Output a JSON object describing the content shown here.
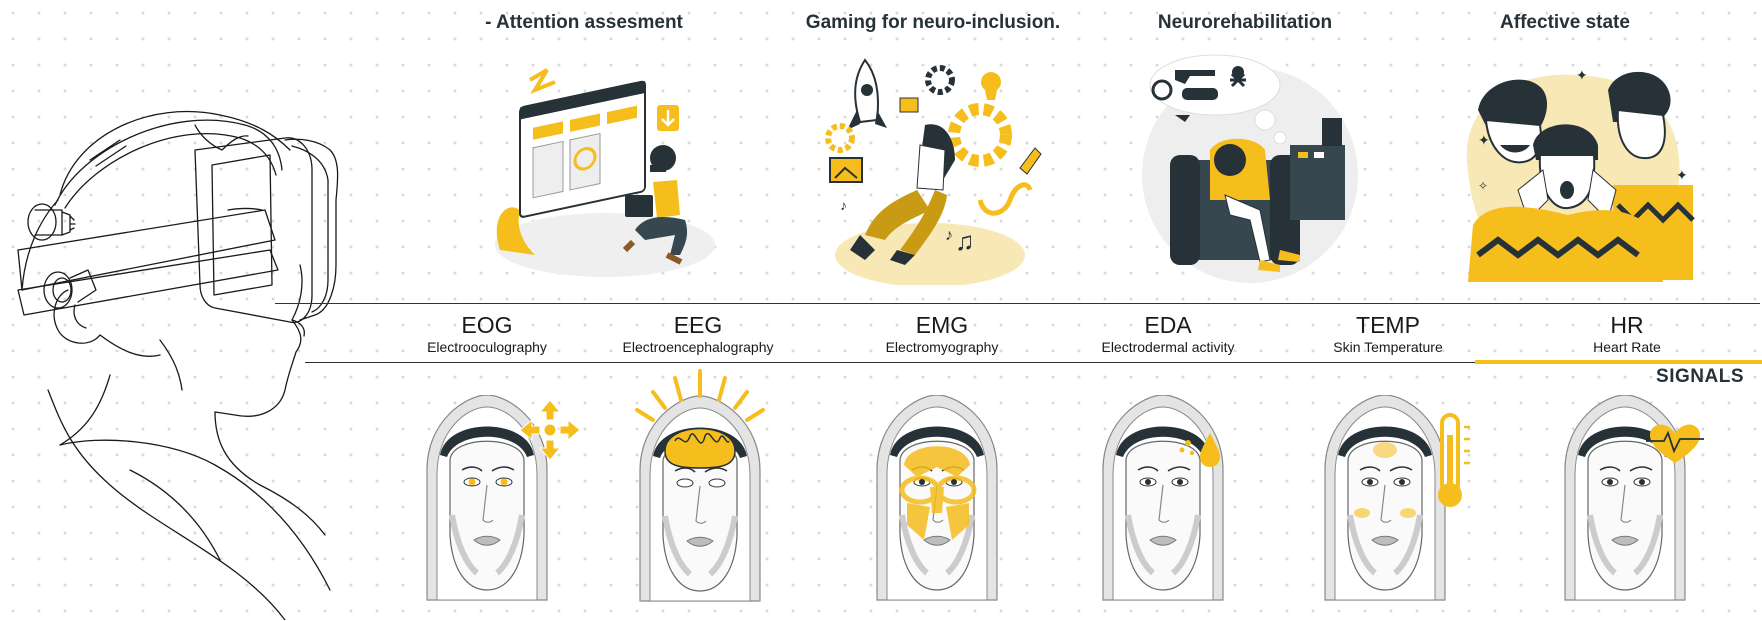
{
  "applications": [
    {
      "id": "attention",
      "title": "- Attention assesment",
      "icon": "attention-illustration"
    },
    {
      "id": "gaming",
      "title": "Gaming for neuro-inclusion.",
      "icon": "gaming-illustration"
    },
    {
      "id": "neurorehab",
      "title": "Neurorehabilitation",
      "icon": "neurorehabilitation-illustration"
    },
    {
      "id": "affective",
      "title": "Affective state",
      "icon": "affective-state-illustration"
    }
  ],
  "signals": [
    {
      "code": "EOG",
      "full": "Electrooculography",
      "icon": "eye-movement-arrows-icon"
    },
    {
      "code": "EEG",
      "full": "Electroencephalography",
      "icon": "brain-waves-icon"
    },
    {
      "code": "EMG",
      "full": "Electromyography",
      "icon": "facial-muscles-icon"
    },
    {
      "code": "EDA",
      "full": "Electrodermal activity",
      "icon": "sweat-drop-icon"
    },
    {
      "code": "TEMP",
      "full": "Skin Temperature",
      "icon": "thermometer-icon"
    },
    {
      "code": "HR",
      "full": "Heart Rate",
      "icon": "heart-pulse-icon"
    }
  ],
  "signals_title": "SIGNALS",
  "colors": {
    "accent": "#F5BE1D",
    "dark": "#263238",
    "light": "#F7E8B5"
  }
}
